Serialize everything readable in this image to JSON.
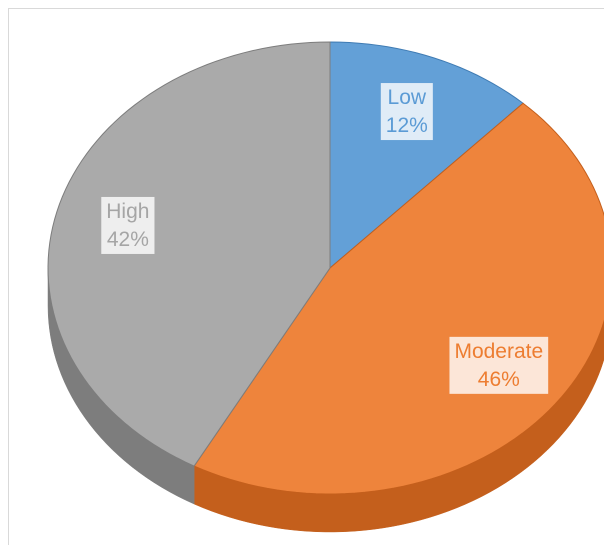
{
  "chart_data": {
    "type": "pie",
    "categories": [
      "Low",
      "Moderate",
      "High"
    ],
    "values": [
      12,
      46,
      42
    ],
    "value_labels": [
      "12%",
      "46%",
      "42%"
    ],
    "colors": [
      "#5b9bd5",
      "#ed7d31",
      "#a5a5a5"
    ],
    "side_colors": [
      "#3f7bb3",
      "#c45f1c",
      "#7d7d7d"
    ]
  }
}
